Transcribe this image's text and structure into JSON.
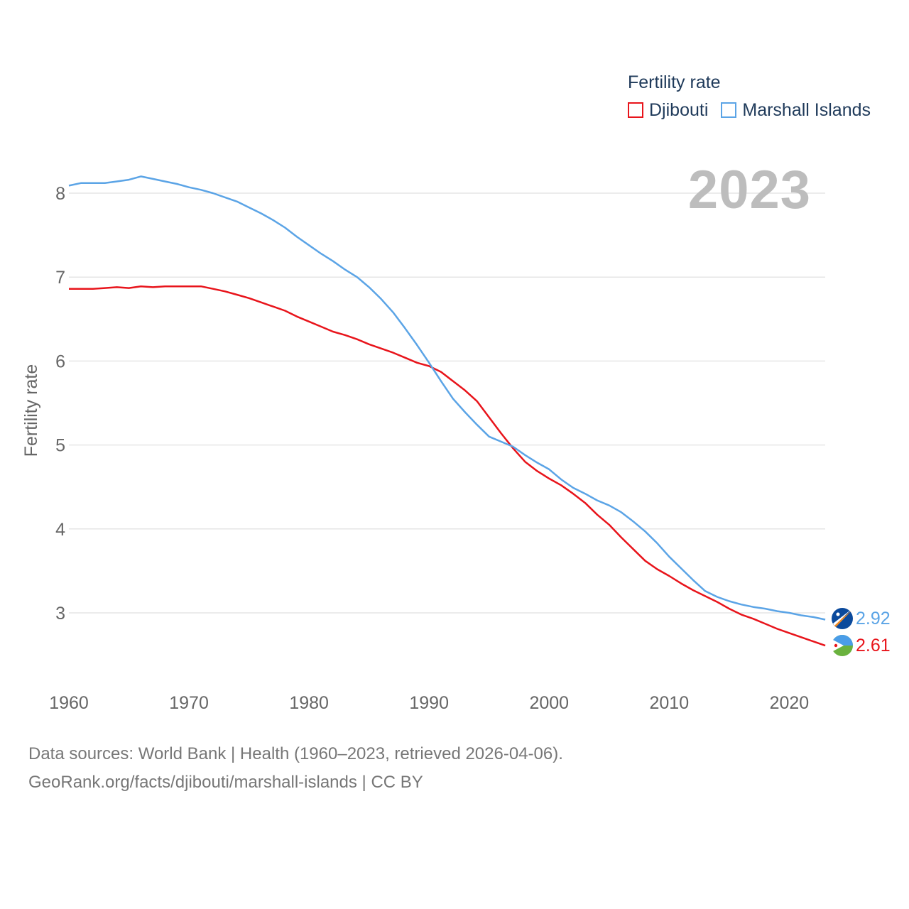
{
  "legend": {
    "title": "Fertility rate",
    "items": [
      {
        "label": "Djibouti",
        "color": "#e8141b"
      },
      {
        "label": "Marshall Islands",
        "color": "#5ba4e6"
      }
    ]
  },
  "current_year": "2023",
  "footer": {
    "line1": "Data sources: World Bank | Health (1960–2023, retrieved 2026-04-06).",
    "line2": "GeoRank.org/facts/djibouti/marshall-islands | CC BY"
  },
  "chart_data": {
    "type": "line",
    "title": "Fertility rate",
    "xlabel": "",
    "ylabel": "Fertility rate",
    "xlim": [
      1960,
      2023
    ],
    "ylim": [
      2.2,
      8.5
    ],
    "xticks": [
      1960,
      1970,
      1980,
      1990,
      2000,
      2010,
      2020
    ],
    "yticks": [
      3,
      4,
      5,
      6,
      7,
      8
    ],
    "grid": true,
    "legend_position": "top-right",
    "x": [
      1960,
      1961,
      1962,
      1963,
      1964,
      1965,
      1966,
      1967,
      1968,
      1969,
      1970,
      1971,
      1972,
      1973,
      1974,
      1975,
      1976,
      1977,
      1978,
      1979,
      1980,
      1981,
      1982,
      1983,
      1984,
      1985,
      1986,
      1987,
      1988,
      1989,
      1990,
      1991,
      1992,
      1993,
      1994,
      1995,
      1996,
      1997,
      1998,
      1999,
      2000,
      2001,
      2002,
      2003,
      2004,
      2005,
      2006,
      2007,
      2008,
      2009,
      2010,
      2011,
      2012,
      2013,
      2014,
      2015,
      2016,
      2017,
      2018,
      2019,
      2020,
      2021,
      2022,
      2023
    ],
    "series": [
      {
        "name": "Djibouti",
        "color": "#e8141b",
        "end_label": "2.61",
        "values": [
          6.86,
          6.86,
          6.86,
          6.87,
          6.88,
          6.87,
          6.89,
          6.88,
          6.89,
          6.89,
          6.89,
          6.89,
          6.86,
          6.83,
          6.79,
          6.75,
          6.7,
          6.65,
          6.6,
          6.53,
          6.47,
          6.41,
          6.35,
          6.31,
          6.26,
          6.2,
          6.15,
          6.1,
          6.04,
          5.98,
          5.94,
          5.87,
          5.76,
          5.65,
          5.52,
          5.33,
          5.14,
          4.96,
          4.8,
          4.69,
          4.6,
          4.52,
          4.42,
          4.31,
          4.17,
          4.05,
          3.9,
          3.76,
          3.62,
          3.52,
          3.44,
          3.35,
          3.27,
          3.2,
          3.13,
          3.05,
          2.98,
          2.93,
          2.87,
          2.81,
          2.76,
          2.71,
          2.66,
          2.61
        ]
      },
      {
        "name": "Marshall Islands",
        "color": "#5ba4e6",
        "end_label": "2.92",
        "values": [
          8.09,
          8.12,
          8.12,
          8.12,
          8.14,
          8.16,
          8.2,
          8.17,
          8.14,
          8.11,
          8.07,
          8.04,
          8.0,
          7.95,
          7.9,
          7.83,
          7.76,
          7.68,
          7.59,
          7.48,
          7.38,
          7.28,
          7.19,
          7.09,
          7.0,
          6.88,
          6.74,
          6.58,
          6.39,
          6.19,
          5.98,
          5.76,
          5.55,
          5.39,
          5.24,
          5.1,
          5.04,
          4.98,
          4.88,
          4.79,
          4.71,
          4.59,
          4.49,
          4.42,
          4.34,
          4.28,
          4.2,
          4.09,
          3.97,
          3.83,
          3.67,
          3.53,
          3.39,
          3.26,
          3.19,
          3.14,
          3.1,
          3.07,
          3.05,
          3.02,
          3.0,
          2.97,
          2.95,
          2.92
        ]
      }
    ]
  }
}
